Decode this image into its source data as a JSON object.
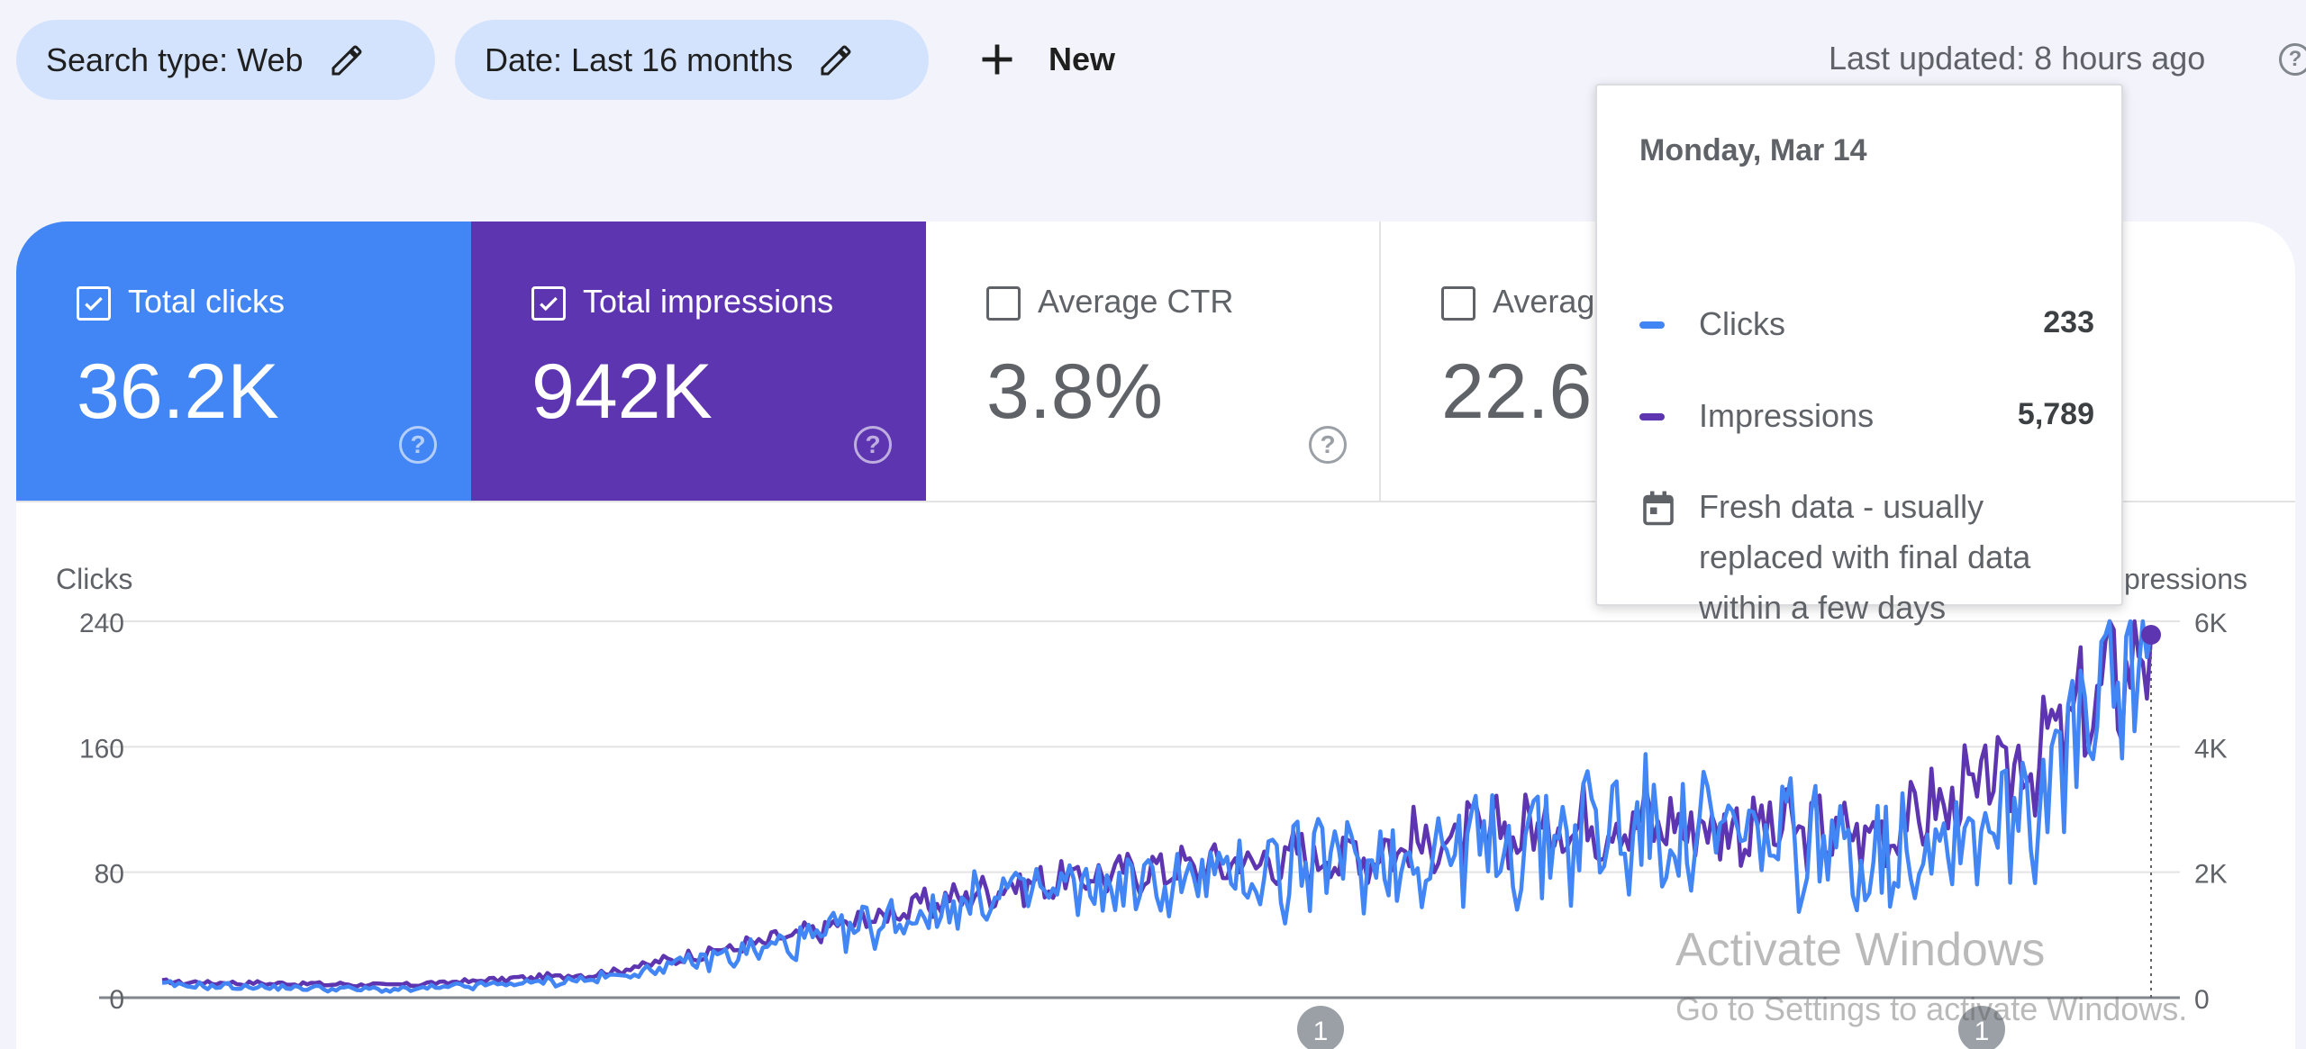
{
  "filters": {
    "search_type": "Search type: Web",
    "date": "Date: Last 16 months",
    "new_label": "New",
    "last_updated": "Last updated: 8 hours ago"
  },
  "metrics": [
    {
      "label": "Total clicks",
      "value": "36.2K",
      "checked": true,
      "color": "#4285f4"
    },
    {
      "label": "Total impressions",
      "value": "942K",
      "checked": true,
      "color": "#5e35b1"
    },
    {
      "label": "Average CTR",
      "value": "3.8%",
      "checked": false
    },
    {
      "label": "Average position",
      "value": "22.6",
      "checked": false
    }
  ],
  "tooltip": {
    "date": "Monday, Mar 14",
    "rows": [
      {
        "name": "Clicks",
        "value": "233",
        "color": "#4285f4"
      },
      {
        "name": "Impressions",
        "value": "5,789",
        "color": "#5e35b1"
      }
    ],
    "note": "Fresh data - usually replaced with final data within a few days"
  },
  "chart_data": {
    "type": "line",
    "left_axis": {
      "label": "Clicks",
      "ticks": [
        "240",
        "160",
        "80",
        "0"
      ],
      "ylim": [
        0,
        240
      ]
    },
    "right_axis": {
      "label": "Impressions",
      "ticks": [
        "6K",
        "4K",
        "2K",
        "0"
      ],
      "ylim": [
        0,
        6000
      ]
    },
    "grid": true,
    "annotations": [
      "1",
      "1"
    ],
    "series": [
      {
        "name": "Clicks",
        "axis": "left",
        "color": "#4285f4",
        "trend": [
          [
            0,
            8
          ],
          [
            0.12,
            5
          ],
          [
            0.22,
            12
          ],
          [
            0.32,
            35
          ],
          [
            0.42,
            65
          ],
          [
            0.5,
            72
          ],
          [
            0.58,
            85
          ],
          [
            0.66,
            95
          ],
          [
            0.72,
            108
          ],
          [
            0.8,
            100
          ],
          [
            0.86,
            92
          ],
          [
            0.92,
            115
          ],
          [
            0.96,
            150
          ],
          [
            1.0,
            233
          ]
        ]
      },
      {
        "name": "Impressions",
        "axis": "right",
        "color": "#5e35b1",
        "trend": [
          [
            0,
            250
          ],
          [
            0.12,
            200
          ],
          [
            0.22,
            380
          ],
          [
            0.32,
            1000
          ],
          [
            0.42,
            1750
          ],
          [
            0.5,
            2050
          ],
          [
            0.58,
            2250
          ],
          [
            0.66,
            2550
          ],
          [
            0.72,
            2850
          ],
          [
            0.8,
            2700
          ],
          [
            0.86,
            2600
          ],
          [
            0.92,
            3400
          ],
          [
            0.96,
            4300
          ],
          [
            1.0,
            5789
          ]
        ]
      }
    ]
  },
  "watermark": {
    "title": "Activate Windows",
    "subtitle": "Go to Settings to activate Windows."
  }
}
